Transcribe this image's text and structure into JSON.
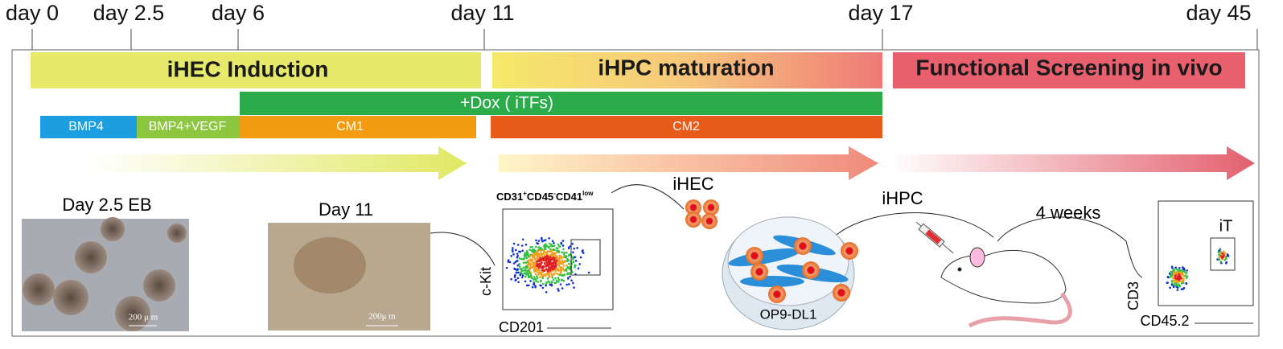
{
  "timeline": [
    "day 0",
    "day 2.5",
    "day 6",
    "day 11",
    "day 17",
    "day 45"
  ],
  "phases": [
    "iHEC Induction",
    "iHPC maturation",
    "Functional Screening in vivo"
  ],
  "dox": "+Dox ( iTFs)",
  "media": [
    "BMP4",
    "BMP4+VEGF",
    "CM1",
    "CM2"
  ],
  "images": [
    {
      "label": "Day 2.5 EB",
      "scale": "200 μ m"
    },
    {
      "label": "Day 11",
      "scale": "200μ m"
    }
  ],
  "flow1": {
    "gate": [
      {
        "base": "CD31",
        "sup": "+"
      },
      {
        "base": "CD45",
        "sup": "-"
      },
      {
        "base": "CD41",
        "sup": "low"
      }
    ],
    "x_label": "CD201",
    "y_label": "c-Kit"
  },
  "cells": {
    "ihec": "iHEC",
    "ihpc": "iHPC",
    "dish": "OP9-DL1",
    "wait": "4 weeks"
  },
  "flow2": {
    "x_label": "CD45.2",
    "y_label": "CD3",
    "gate": "iT"
  }
}
